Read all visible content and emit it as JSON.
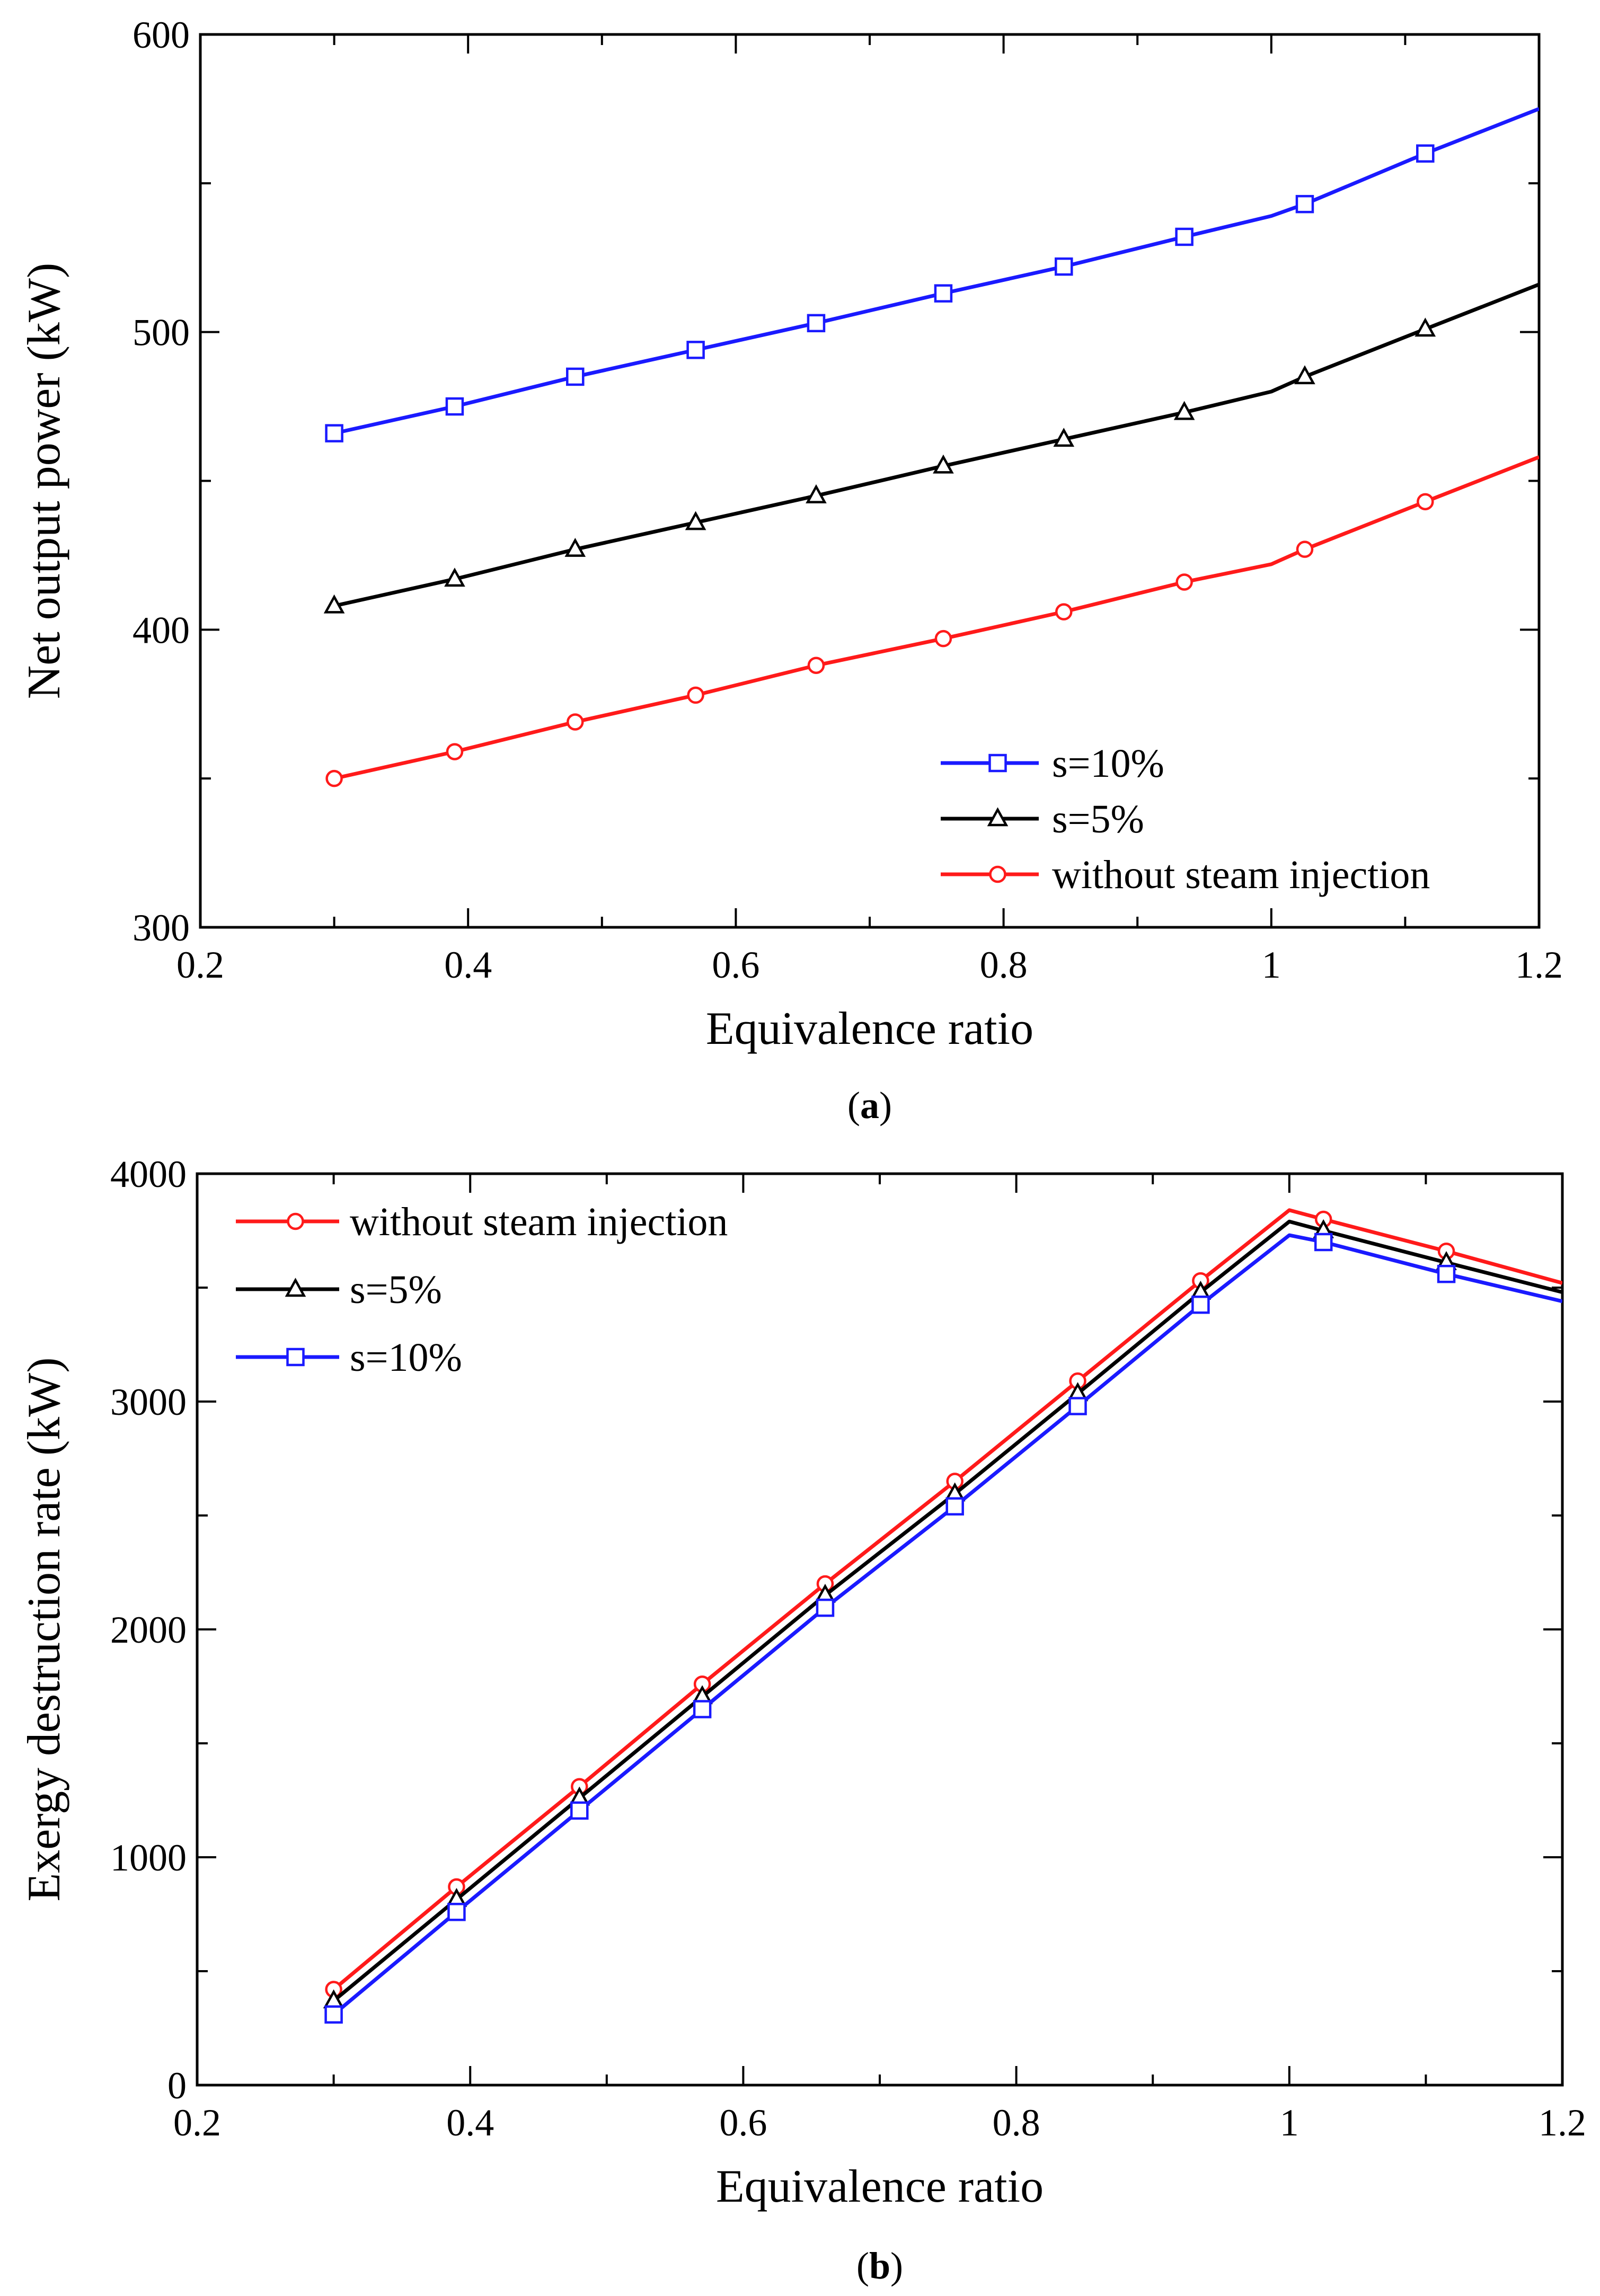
{
  "chart_data": [
    {
      "type": "line",
      "panel_label": "a",
      "xlabel": "Equivalence ratio",
      "ylabel": "Net output power (kW)",
      "xlim": [
        0.2,
        1.2
      ],
      "ylim": [
        300,
        600
      ],
      "xticks": [
        "0.2",
        "0.4",
        "0.6",
        "0.8",
        "1",
        "1.2"
      ],
      "yticks": [
        "300",
        "400",
        "500",
        "600"
      ],
      "grid": false,
      "legend_position": "bottom-right",
      "series": [
        {
          "name": "s=10%",
          "color": "#1a1aff",
          "marker": "square",
          "x": [
            0.3,
            0.39,
            0.48,
            0.57,
            0.66,
            0.755,
            0.845,
            0.935,
            1.0,
            1.025,
            1.115,
            1.2
          ],
          "y": [
            466,
            475,
            485,
            494,
            503,
            513,
            522,
            532,
            539,
            543,
            560,
            575
          ],
          "marker_x": [
            0.3,
            0.39,
            0.48,
            0.57,
            0.66,
            0.755,
            0.845,
            0.935,
            1.025,
            1.115
          ]
        },
        {
          "name": "s=5%",
          "color": "#000000",
          "marker": "triangle",
          "x": [
            0.3,
            0.39,
            0.48,
            0.57,
            0.66,
            0.755,
            0.845,
            0.935,
            1.0,
            1.025,
            1.115,
            1.2
          ],
          "y": [
            408,
            417,
            427,
            436,
            445,
            455,
            464,
            473,
            480,
            485,
            501,
            516
          ],
          "marker_x": [
            0.3,
            0.39,
            0.48,
            0.57,
            0.66,
            0.755,
            0.845,
            0.935,
            1.025,
            1.115
          ]
        },
        {
          "name": "without steam injection",
          "color": "#ff1a1a",
          "marker": "circle",
          "x": [
            0.3,
            0.39,
            0.48,
            0.57,
            0.66,
            0.755,
            0.845,
            0.935,
            1.0,
            1.025,
            1.115,
            1.2
          ],
          "y": [
            350,
            359,
            369,
            378,
            388,
            397,
            406,
            416,
            422,
            427,
            443,
            458
          ],
          "marker_x": [
            0.3,
            0.39,
            0.48,
            0.57,
            0.66,
            0.755,
            0.845,
            0.935,
            1.025,
            1.115
          ]
        }
      ]
    },
    {
      "type": "line",
      "panel_label": "b",
      "xlabel": "Equivalence ratio",
      "ylabel": "Exergy destruction rate (kW)",
      "xlim": [
        0.2,
        1.2
      ],
      "ylim": [
        0,
        4000
      ],
      "xticks": [
        "0.2",
        "0.4",
        "0.6",
        "0.8",
        "1",
        "1.2"
      ],
      "yticks": [
        "0",
        "1000",
        "2000",
        "3000",
        "4000"
      ],
      "grid": false,
      "legend_position": "top-left",
      "series": [
        {
          "name": "without steam injection",
          "color": "#ff1a1a",
          "marker": "circle",
          "x": [
            0.3,
            0.39,
            0.48,
            0.57,
            0.66,
            0.755,
            0.845,
            0.935,
            1.0,
            1.025,
            1.115,
            1.2
          ],
          "y": [
            420,
            870,
            1310,
            1760,
            2200,
            2650,
            3090,
            3530,
            3840,
            3800,
            3660,
            3520
          ],
          "marker_x": [
            0.3,
            0.39,
            0.48,
            0.57,
            0.66,
            0.755,
            0.845,
            0.935,
            1.025,
            1.115
          ]
        },
        {
          "name": "s=5%",
          "color": "#000000",
          "marker": "triangle",
          "x": [
            0.3,
            0.39,
            0.48,
            0.57,
            0.66,
            0.755,
            0.845,
            0.935,
            1.0,
            1.025,
            1.115,
            1.2
          ],
          "y": [
            370,
            815,
            1260,
            1705,
            2150,
            2595,
            3035,
            3480,
            3790,
            3750,
            3610,
            3480
          ],
          "marker_x": [
            0.3,
            0.39,
            0.48,
            0.57,
            0.66,
            0.755,
            0.845,
            0.935,
            1.025,
            1.115
          ]
        },
        {
          "name": "s=10%",
          "color": "#1a1aff",
          "marker": "square",
          "x": [
            0.3,
            0.39,
            0.48,
            0.57,
            0.66,
            0.755,
            0.845,
            0.935,
            1.0,
            1.025,
            1.115,
            1.2
          ],
          "y": [
            310,
            760,
            1205,
            1650,
            2095,
            2540,
            2980,
            3425,
            3730,
            3700,
            3560,
            3440
          ],
          "marker_x": [
            0.3,
            0.39,
            0.48,
            0.57,
            0.66,
            0.755,
            0.845,
            0.935,
            1.025,
            1.115
          ]
        }
      ]
    }
  ]
}
